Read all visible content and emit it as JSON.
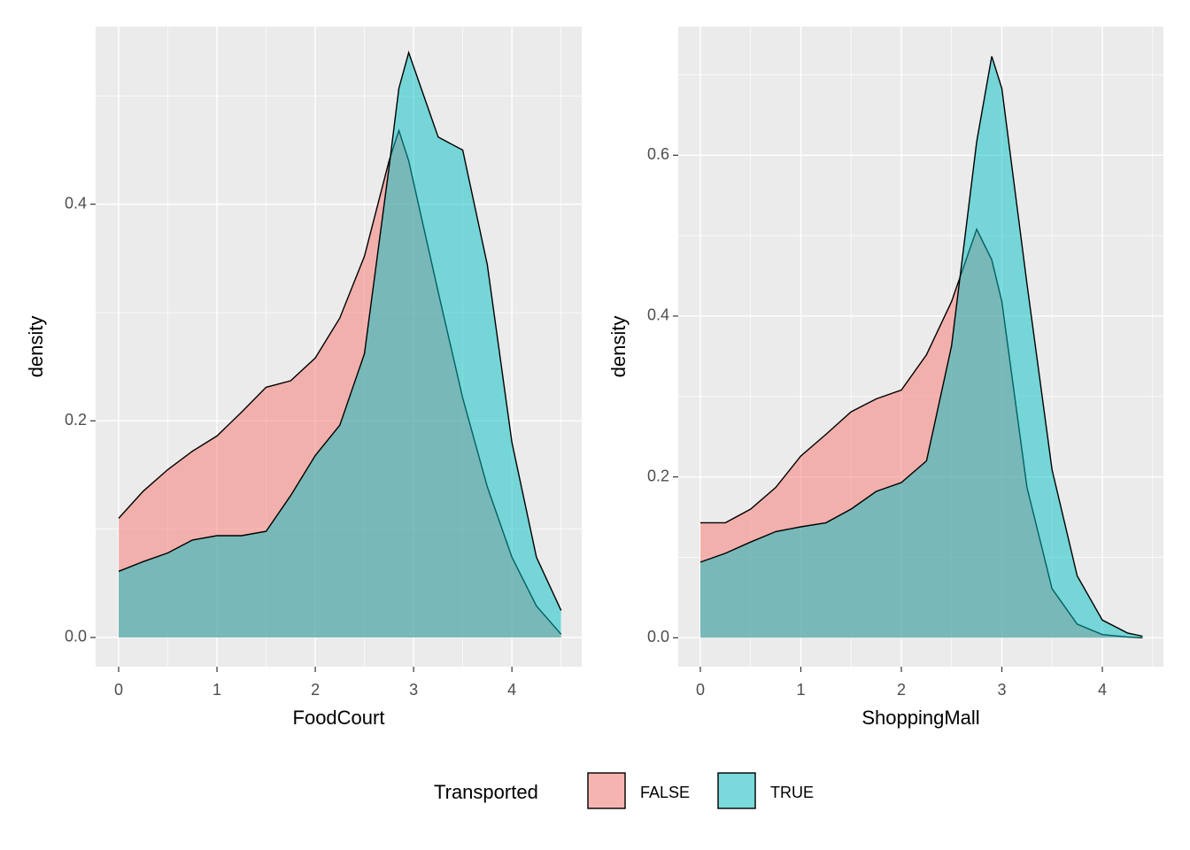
{
  "chart_data": [
    {
      "type": "density",
      "x_label": "FoodCourt",
      "y_label": "density",
      "legend_title": "Transported",
      "x": [
        0,
        0.25,
        0.5,
        0.75,
        1,
        1.25,
        1.5,
        1.75,
        2,
        2.25,
        2.5,
        2.75,
        2.85,
        2.95,
        3.25,
        3.5,
        3.75,
        4,
        4.25,
        4.5
      ],
      "series": [
        {
          "name": "FALSE",
          "color": "#F8766D",
          "values": [
            0.11,
            0.135,
            0.155,
            0.172,
            0.186,
            0.208,
            0.231,
            0.237,
            0.258,
            0.295,
            0.352,
            0.44,
            0.468,
            0.44,
            0.319,
            0.221,
            0.139,
            0.074,
            0.029,
            0.003
          ]
        },
        {
          "name": "TRUE",
          "color": "#00BFC4",
          "values": [
            0.061,
            0.07,
            0.078,
            0.09,
            0.094,
            0.094,
            0.098,
            0.131,
            0.168,
            0.196,
            0.262,
            0.434,
            0.507,
            0.54,
            0.462,
            0.45,
            0.344,
            0.18,
            0.074,
            0.025
          ]
        }
      ],
      "xlim": [
        -0.234,
        4.71
      ],
      "ylim": [
        -0.027,
        0.564
      ],
      "xticks": [
        0,
        1,
        2,
        3,
        4
      ],
      "yticks": [
        {
          "value": 0,
          "label": "0.0"
        },
        0.2,
        0.4
      ],
      "grid": true
    },
    {
      "type": "density",
      "x_label": "ShoppingMall",
      "y_label": "density",
      "x": [
        0,
        0.25,
        0.5,
        0.75,
        1,
        1.25,
        1.5,
        1.75,
        2,
        2.25,
        2.5,
        2.75,
        2.9,
        3,
        3.25,
        3.5,
        3.75,
        4,
        4.25,
        4.4
      ],
      "series": [
        {
          "name": "FALSE",
          "color": "#F8766D",
          "values": [
            0.143,
            0.143,
            0.16,
            0.187,
            0.226,
            0.253,
            0.281,
            0.297,
            0.308,
            0.352,
            0.418,
            0.508,
            0.47,
            0.418,
            0.187,
            0.061,
            0.017,
            0.004,
            0.001,
            0
          ]
        },
        {
          "name": "TRUE",
          "color": "#00BFC4",
          "values": [
            0.094,
            0.105,
            0.119,
            0.132,
            0.138,
            0.143,
            0.16,
            0.182,
            0.193,
            0.22,
            0.363,
            0.617,
            0.723,
            0.683,
            0.44,
            0.209,
            0.077,
            0.022,
            0.006,
            0.002
          ]
        }
      ],
      "xlim": [
        -0.22,
        4.608
      ],
      "ylim": [
        -0.036,
        0.76
      ],
      "xticks": [
        0,
        1,
        2,
        3,
        4
      ],
      "yticks": [
        {
          "value": 0,
          "label": "0.0"
        },
        0.2,
        0.4,
        0.6
      ],
      "grid": true
    }
  ]
}
